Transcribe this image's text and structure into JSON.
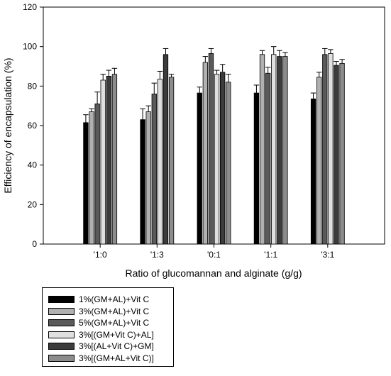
{
  "chart_data": {
    "type": "bar",
    "title": "",
    "xlabel": "Ratio of glucomannan and alginate (g/g)",
    "ylabel": "Efficiency of encapsulation (%)",
    "ylim": [
      0,
      120
    ],
    "yticks": [
      "0",
      "20",
      "40",
      "60",
      "80",
      "100",
      "120"
    ],
    "categories": [
      "'1:0",
      "'1:3",
      "'0:1",
      "'1:1",
      "'3:1"
    ],
    "grid": false,
    "legend_position": "bottom-left",
    "series": [
      {
        "name": "1%(GM+AL)+Vit C",
        "color": "#000000",
        "values": [
          61.5,
          63,
          76.5,
          76.5,
          73.5
        ],
        "errors": [
          4,
          5.5,
          3,
          4,
          3
        ]
      },
      {
        "name": "3%(GM+AL)+Vit C",
        "color": "#b0b0b0",
        "values": [
          67,
          67,
          92,
          96,
          84.5
        ],
        "errors": [
          1.5,
          3,
          3,
          2,
          2.5
        ]
      },
      {
        "name": "5%(GM+AL)+Vit C",
        "color": "#5a5a5a",
        "values": [
          71,
          76,
          96.5,
          86.5,
          96
        ],
        "errors": [
          6,
          5.5,
          2.5,
          3,
          3
        ]
      },
      {
        "name": "3%[(GM+Vit C)+AL]",
        "color": "#e0e0e0",
        "values": [
          83,
          83.5,
          86,
          96,
          96.5
        ],
        "errors": [
          3,
          4,
          2,
          4,
          2
        ]
      },
      {
        "name": "3%[(AL+Vit C)+GM]",
        "color": "#3c3c3c",
        "values": [
          85,
          96,
          87,
          95,
          90.5
        ],
        "errors": [
          3,
          3,
          4,
          3,
          2
        ]
      },
      {
        "name": "3%[(GM+AL+Vit C)]",
        "color": "#8c8c8c",
        "values": [
          86,
          84.5,
          82,
          95,
          91.5
        ],
        "errors": [
          3,
          1.5,
          4,
          2,
          2
        ]
      }
    ]
  }
}
